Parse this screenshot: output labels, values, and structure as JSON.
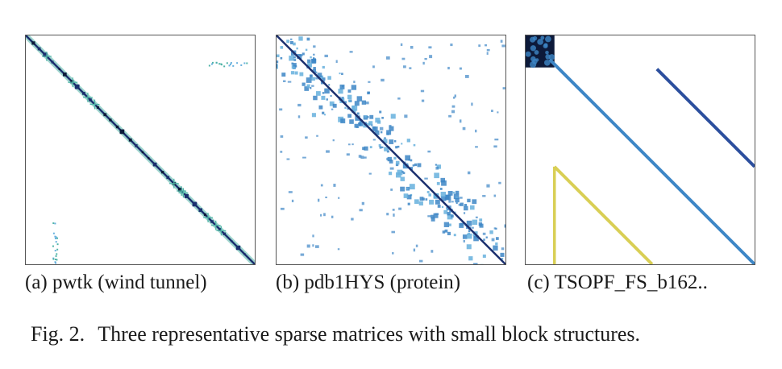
{
  "figure": {
    "label": "Fig. 2.",
    "caption": "Three representative sparse matrices with small block structures."
  },
  "panels": [
    {
      "id": "a",
      "subcaption": "(a) pwtk (wind tunnel)",
      "pattern": "narrow banded diagonal with small off-diagonal blocks"
    },
    {
      "id": "b",
      "subcaption": "(b) pdb1HYS (protein)",
      "pattern": "diagonal with scattered clustered blocks"
    },
    {
      "id": "c",
      "subcaption": "(c) TSOPF_FS_b162..",
      "pattern": "dense top-left block with parallel off-diagonals"
    }
  ],
  "colors": {
    "diagonal_dark": "#1b2f6e",
    "blue": "#3d86c6",
    "light_blue": "#66b0dd",
    "teal": "#4fb3a6",
    "yellow": "#d9cf55",
    "frame": "#555555"
  }
}
